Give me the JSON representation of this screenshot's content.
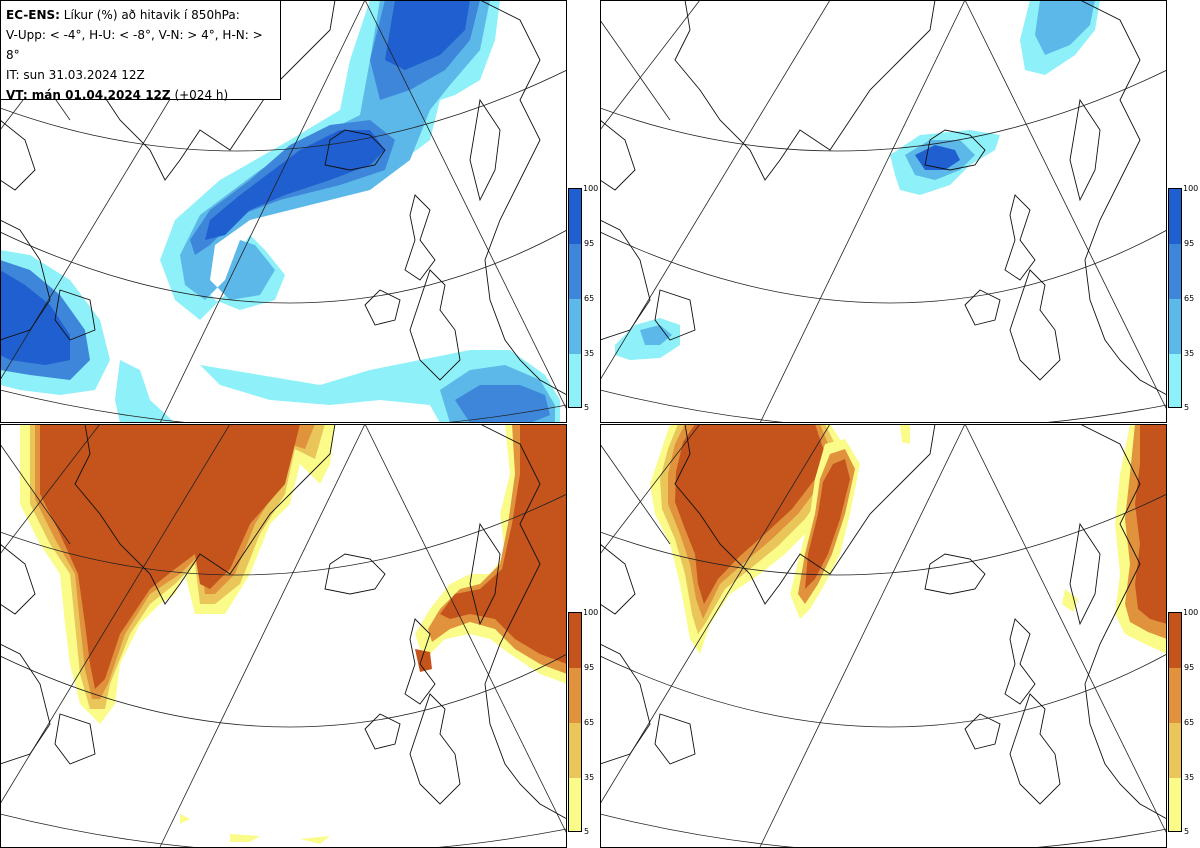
{
  "info": {
    "model": "EC-ENS:",
    "title": "Líkur (%) að hitavik í 850hPa:",
    "legend_line": "V-Upp: < -4°, H-U: < -8°, V-N: > 4°, H-N: > 8°",
    "init_time": "IT: sun 31.03.2024 12Z",
    "valid_label": "VT: mán 01.04.2024 12Z",
    "valid_lead": "(+024 h)"
  },
  "colorbar": {
    "ticks": [
      "100",
      "95",
      "65",
      "35",
      "5"
    ],
    "blue_colors": [
      "#1f5fcf",
      "#3d86d9",
      "#5bb8e8",
      "#8ef0f8"
    ],
    "orange_colors": [
      "#c4541c",
      "#e0923c",
      "#eac55a",
      "#fbfb8a"
    ]
  },
  "panels": [
    {
      "id": "cold-4",
      "palette": "blue"
    },
    {
      "id": "cold-8",
      "palette": "blue"
    },
    {
      "id": "warm-4",
      "palette": "orange"
    },
    {
      "id": "warm-8",
      "palette": "orange"
    }
  ]
}
